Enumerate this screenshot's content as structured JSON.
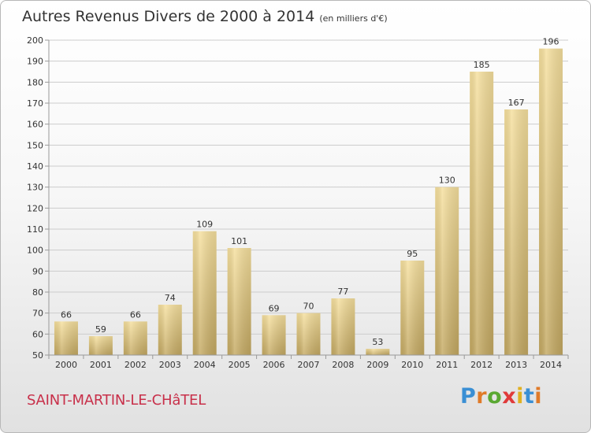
{
  "header": {
    "title": "Autres Revenus Divers de 2000 à 2014",
    "subtitle": "(en milliers d'€)"
  },
  "footer": {
    "commune": "SAINT-MARTIN-LE-CHâTEL",
    "logo": {
      "text": "Proxiti",
      "letter_colors": [
        "#3a8fd4",
        "#e07a28",
        "#5aa832",
        "#e03a3a",
        "#e0b020",
        "#3a8fd4",
        "#e07a28"
      ]
    }
  },
  "colors": {
    "bar_top": "#f6e09e",
    "bar_bottom": "#c4a962",
    "gridline": "#cccccc",
    "axis": "#999999"
  },
  "chart_data": {
    "type": "bar",
    "title": "Autres Revenus Divers de 2000 à 2014",
    "subtitle": "(en milliers d'€)",
    "categories": [
      "2000",
      "2001",
      "2002",
      "2003",
      "2004",
      "2005",
      "2006",
      "2007",
      "2008",
      "2009",
      "2010",
      "2011",
      "2012",
      "2013",
      "2014"
    ],
    "values": [
      66,
      59,
      66,
      74,
      109,
      101,
      69,
      70,
      77,
      53,
      95,
      130,
      185,
      167,
      196
    ],
    "ylim": [
      50,
      200
    ],
    "yticks": [
      50,
      60,
      70,
      80,
      90,
      100,
      110,
      120,
      130,
      140,
      150,
      160,
      170,
      180,
      190,
      200
    ],
    "grid": true,
    "data_labels": true
  }
}
